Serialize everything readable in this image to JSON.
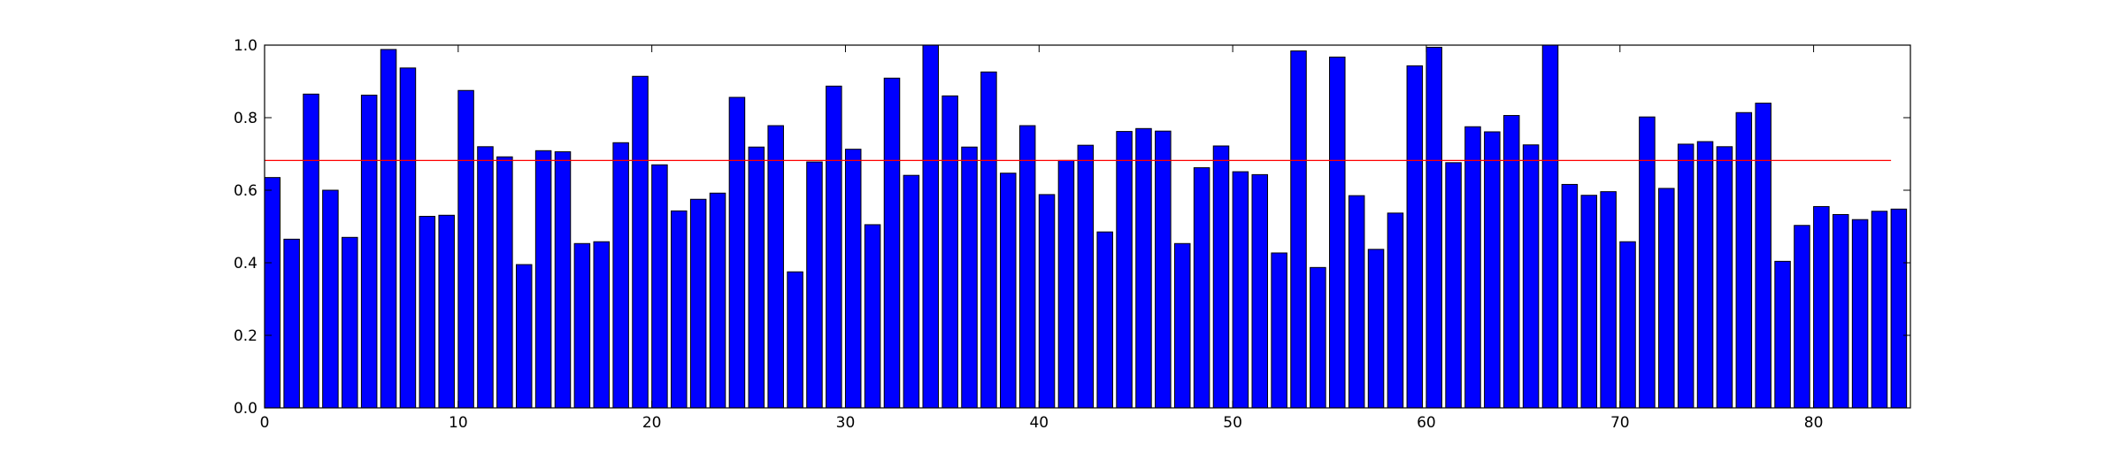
{
  "chart_data": {
    "type": "bar",
    "title": "",
    "xlabel": "",
    "ylabel": "",
    "xlim": [
      0,
      85
    ],
    "ylim": [
      0,
      1.0
    ],
    "x_ticks": [
      0,
      10,
      20,
      30,
      40,
      50,
      60,
      70,
      80
    ],
    "x_tick_labels": [
      "0",
      "10",
      "20",
      "30",
      "40",
      "50",
      "60",
      "70",
      "80"
    ],
    "y_ticks": [
      0.0,
      0.2,
      0.4,
      0.6,
      0.8,
      1.0
    ],
    "y_tick_labels": [
      "0.0",
      "0.2",
      "0.4",
      "0.6",
      "0.8",
      "1.0"
    ],
    "grid": false,
    "legend": "none",
    "bar_color": "#0000ff",
    "bar_edge_color": "#000000",
    "series": [
      {
        "values": [
          0.635,
          0.465,
          0.865,
          0.6,
          0.47,
          0.862,
          0.988,
          0.937,
          0.528,
          0.531,
          0.875,
          0.72,
          0.692,
          0.395,
          0.709,
          0.706,
          0.453,
          0.458,
          0.731,
          0.914,
          0.67,
          0.543,
          0.575,
          0.592,
          0.856,
          0.719,
          0.778,
          0.375,
          0.678,
          0.887,
          0.713,
          0.505,
          0.909,
          0.641,
          1.0,
          0.86,
          0.719,
          0.926,
          0.647,
          0.778,
          0.588,
          0.682,
          0.724,
          0.485,
          0.762,
          0.77,
          0.763,
          0.453,
          0.662,
          0.722,
          0.651,
          0.643,
          0.427,
          0.984,
          0.387,
          0.967,
          0.585,
          0.437,
          0.537,
          0.943,
          0.994,
          0.676,
          0.775,
          0.761,
          0.806,
          0.725,
          1.0,
          0.616,
          0.586,
          0.596,
          0.458,
          0.802,
          0.605,
          0.727,
          0.734,
          0.72,
          0.814,
          0.84,
          0.404,
          0.503,
          0.555,
          0.533,
          0.519,
          0.542,
          0.548
        ]
      }
    ],
    "reference_line": {
      "value": 0.682,
      "color": "#ff0000"
    }
  }
}
